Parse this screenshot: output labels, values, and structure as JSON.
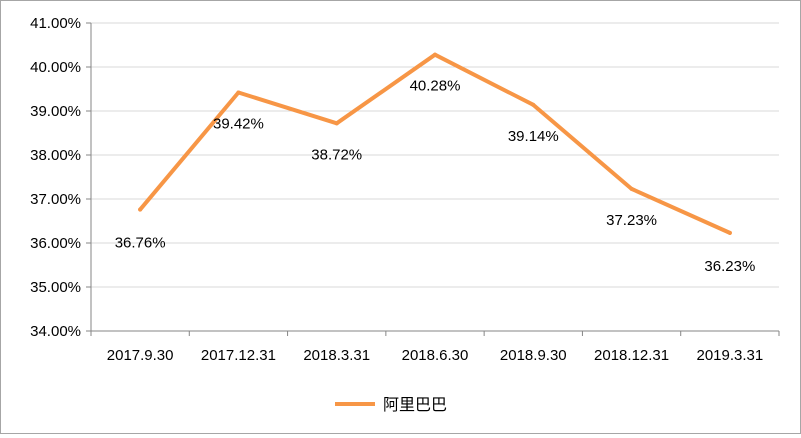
{
  "chart_data": {
    "type": "line",
    "categories": [
      "2017.9.30",
      "2017.12.31",
      "2018.3.31",
      "2018.6.30",
      "2018.9.30",
      "2018.12.31",
      "2019.3.31"
    ],
    "series": [
      {
        "name": "阿里巴巴",
        "values": [
          36.76,
          39.42,
          38.72,
          40.28,
          39.14,
          37.23,
          36.23
        ],
        "labels": [
          "36.76%",
          "39.42%",
          "38.72%",
          "40.28%",
          "39.14%",
          "37.23%",
          "36.23%"
        ],
        "color": "#f79646"
      }
    ],
    "ylim": [
      34,
      41
    ],
    "yticks": [
      34,
      35,
      36,
      37,
      38,
      39,
      40,
      41
    ],
    "ytick_labels": [
      "34.00%",
      "35.00%",
      "36.00%",
      "37.00%",
      "38.00%",
      "39.00%",
      "40.00%",
      "41.00%"
    ],
    "grid": true,
    "legend_position": "bottom",
    "title": "",
    "xlabel": "",
    "ylabel": ""
  },
  "colors": {
    "axis": "#868686",
    "gridline": "#d9d9d9"
  }
}
